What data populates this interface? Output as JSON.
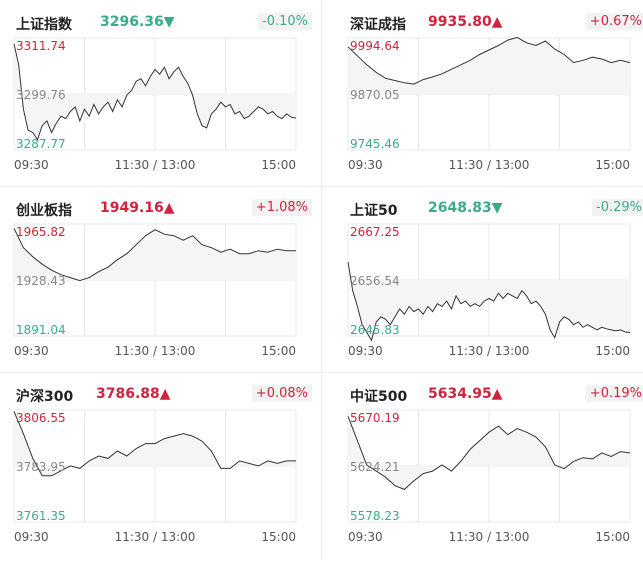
{
  "chart_data": [
    {
      "type": "line",
      "name": "上证指数",
      "price": "3296.36",
      "arrow": "▼",
      "change": "-0.10%",
      "direction": "down",
      "y_ticks": [
        "3311.74",
        "3299.76",
        "3287.77"
      ],
      "ylim": [
        3287.77,
        3311.74
      ],
      "y_mid": 3299.76,
      "x_ticks": [
        "09:30",
        "11:30 / 13:00",
        "15:00"
      ],
      "x": [
        0,
        4,
        8,
        12,
        16,
        20,
        24,
        28,
        32,
        36,
        40,
        44,
        48,
        52,
        56,
        60,
        64,
        68,
        72,
        76,
        80,
        84,
        88,
        92,
        96,
        100,
        104,
        108,
        112,
        116,
        120,
        124,
        128,
        132,
        136,
        140,
        144,
        148,
        152,
        156,
        160,
        164,
        168,
        172,
        176,
        180,
        184,
        188,
        192,
        196,
        200,
        204,
        208,
        212,
        216,
        220,
        224,
        228,
        232,
        236,
        240
      ],
      "values": [
        3310.5,
        3306.0,
        3296.5,
        3292.0,
        3291.5,
        3290.0,
        3293.0,
        3294.0,
        3291.5,
        3293.5,
        3295.0,
        3294.5,
        3296.0,
        3297.0,
        3294.0,
        3296.5,
        3295.0,
        3297.5,
        3295.5,
        3297.0,
        3298.0,
        3296.0,
        3298.5,
        3297.0,
        3299.5,
        3300.5,
        3302.5,
        3303.0,
        3301.5,
        3303.5,
        3305.0,
        3304.0,
        3305.5,
        3303.0,
        3304.5,
        3305.5,
        3303.5,
        3302.0,
        3299.5,
        3295.5,
        3293.0,
        3292.5,
        3295.5,
        3296.5,
        3298.0,
        3297.0,
        3297.5,
        3295.5,
        3296.0,
        3294.5,
        3295.0,
        3296.0,
        3297.0,
        3296.5,
        3295.5,
        3296.0,
        3295.0,
        3294.5,
        3295.5,
        3294.8,
        3294.6
      ]
    },
    {
      "type": "line",
      "name": "深证成指",
      "price": "9935.80",
      "arrow": "▲",
      "change": "+0.67%",
      "direction": "up",
      "y_ticks": [
        "9994.64",
        "9870.05",
        "9745.46"
      ],
      "ylim": [
        9745.46,
        9994.64
      ],
      "y_mid": 9870.05,
      "x_ticks": [
        "09:30",
        "11:30 / 13:00",
        "15:00"
      ],
      "x": [
        0,
        8,
        16,
        24,
        32,
        40,
        48,
        56,
        64,
        72,
        80,
        88,
        96,
        104,
        112,
        120,
        128,
        136,
        144,
        152,
        160,
        168,
        176,
        184,
        192,
        200,
        208,
        216,
        224,
        232,
        240
      ],
      "values": [
        9975,
        9955,
        9935,
        9918,
        9905,
        9900,
        9895,
        9892,
        9902,
        9908,
        9915,
        9925,
        9935,
        9945,
        9958,
        9968,
        9978,
        9990,
        9996,
        9984,
        9978,
        9988,
        9970,
        9958,
        9940,
        9945,
        9952,
        9948,
        9940,
        9945,
        9940
      ]
    },
    {
      "type": "line",
      "name": "创业板指",
      "price": "1949.16",
      "arrow": "▲",
      "change": "+1.08%",
      "direction": "up",
      "y_ticks": [
        "1965.82",
        "1928.43",
        "1891.04"
      ],
      "ylim": [
        1891.04,
        1965.82
      ],
      "y_mid": 1928.43,
      "x_ticks": [
        "09:30",
        "11:30 / 13:00",
        "15:00"
      ],
      "x": [
        0,
        8,
        16,
        24,
        32,
        40,
        48,
        56,
        64,
        72,
        80,
        88,
        96,
        104,
        112,
        120,
        128,
        136,
        144,
        152,
        160,
        168,
        176,
        184,
        192,
        200,
        208,
        216,
        224,
        232,
        240
      ],
      "values": [
        1963,
        1950,
        1944,
        1939,
        1935,
        1932,
        1930,
        1928,
        1930,
        1934,
        1937,
        1942,
        1946,
        1952,
        1958,
        1962,
        1959,
        1958,
        1955,
        1958,
        1952,
        1950,
        1947,
        1949,
        1946,
        1946,
        1948,
        1947,
        1949,
        1948,
        1948
      ]
    },
    {
      "type": "line",
      "name": "上证50",
      "price": "2648.83",
      "arrow": "▼",
      "change": "-0.29%",
      "direction": "down",
      "y_ticks": [
        "2667.25",
        "2656.54",
        "2645.83"
      ],
      "ylim": [
        2645.83,
        2667.25
      ],
      "y_mid": 2656.54,
      "x_ticks": [
        "09:30",
        "11:30 / 13:00",
        "15:00"
      ],
      "x": [
        0,
        4,
        8,
        12,
        16,
        20,
        24,
        28,
        32,
        36,
        40,
        44,
        48,
        52,
        56,
        60,
        64,
        68,
        72,
        76,
        80,
        84,
        88,
        92,
        96,
        100,
        104,
        108,
        112,
        116,
        120,
        124,
        128,
        132,
        136,
        140,
        144,
        148,
        152,
        156,
        160,
        164,
        168,
        172,
        176,
        180,
        184,
        188,
        192,
        196,
        200,
        204,
        208,
        212,
        216,
        220,
        224,
        228,
        232,
        236,
        240
      ],
      "values": [
        2660.0,
        2654.5,
        2651.5,
        2648.0,
        2646.5,
        2645.0,
        2648.5,
        2649.5,
        2649.0,
        2648.0,
        2649.5,
        2651.0,
        2650.0,
        2651.5,
        2650.5,
        2651.0,
        2650.0,
        2651.5,
        2650.5,
        2652.0,
        2651.5,
        2652.5,
        2651.0,
        2653.5,
        2652.0,
        2652.5,
        2651.5,
        2652.0,
        2651.5,
        2652.5,
        2653.0,
        2652.5,
        2654.0,
        2653.0,
        2654.0,
        2653.5,
        2653.0,
        2654.5,
        2653.5,
        2652.0,
        2652.5,
        2651.5,
        2650.0,
        2647.0,
        2645.5,
        2648.5,
        2649.5,
        2649.0,
        2648.0,
        2648.5,
        2647.5,
        2648.0,
        2647.5,
        2647.0,
        2647.5,
        2647.2,
        2647.0,
        2646.8,
        2647.0,
        2646.6,
        2646.5
      ]
    },
    {
      "type": "line",
      "name": "沪深300",
      "price": "3786.88",
      "arrow": "▲",
      "change": "+0.08%",
      "direction": "up",
      "y_ticks": [
        "3806.55",
        "3783.95",
        "3761.35"
      ],
      "ylim": [
        3761.35,
        3806.55
      ],
      "y_mid": 3783.95,
      "x_ticks": [
        "09:30",
        "11:30 / 13:00",
        "15:00"
      ],
      "x": [
        0,
        8,
        16,
        24,
        32,
        40,
        48,
        56,
        64,
        72,
        80,
        88,
        96,
        104,
        112,
        120,
        128,
        136,
        144,
        152,
        160,
        168,
        176,
        184,
        192,
        200,
        208,
        216,
        224,
        232,
        240
      ],
      "values": [
        3806,
        3797,
        3787,
        3780,
        3780,
        3782,
        3784,
        3783,
        3786,
        3788,
        3787,
        3790,
        3788,
        3791,
        3793,
        3793,
        3795,
        3796,
        3797,
        3796,
        3794,
        3790,
        3783,
        3783,
        3786,
        3785,
        3784,
        3786,
        3785,
        3786,
        3786
      ]
    },
    {
      "type": "line",
      "name": "中证500",
      "price": "5634.95",
      "arrow": "▲",
      "change": "+0.19%",
      "direction": "up",
      "y_ticks": [
        "5670.19",
        "5624.21",
        "5578.23"
      ],
      "ylim": [
        5578.23,
        5670.19
      ],
      "y_mid": 5624.21,
      "x_ticks": [
        "09:30",
        "11:30 / 13:00",
        "15:00"
      ],
      "x": [
        0,
        8,
        16,
        24,
        32,
        40,
        48,
        56,
        64,
        72,
        80,
        88,
        96,
        104,
        112,
        120,
        128,
        136,
        144,
        152,
        160,
        168,
        176,
        184,
        192,
        200,
        208,
        216,
        224,
        232,
        240
      ],
      "values": [
        5665,
        5645,
        5625,
        5620,
        5615,
        5608,
        5605,
        5612,
        5618,
        5620,
        5625,
        5620,
        5628,
        5638,
        5645,
        5652,
        5657,
        5650,
        5655,
        5652,
        5648,
        5640,
        5625,
        5622,
        5628,
        5631,
        5630,
        5635,
        5632,
        5636,
        5635
      ]
    }
  ],
  "colors": {
    "up": "#d0233d",
    "down": "#3bab8c",
    "line": "#333333",
    "area": "#f5f5f5",
    "grid": "#e8e8e8",
    "mid": "#888888",
    "axis": "#555555"
  }
}
